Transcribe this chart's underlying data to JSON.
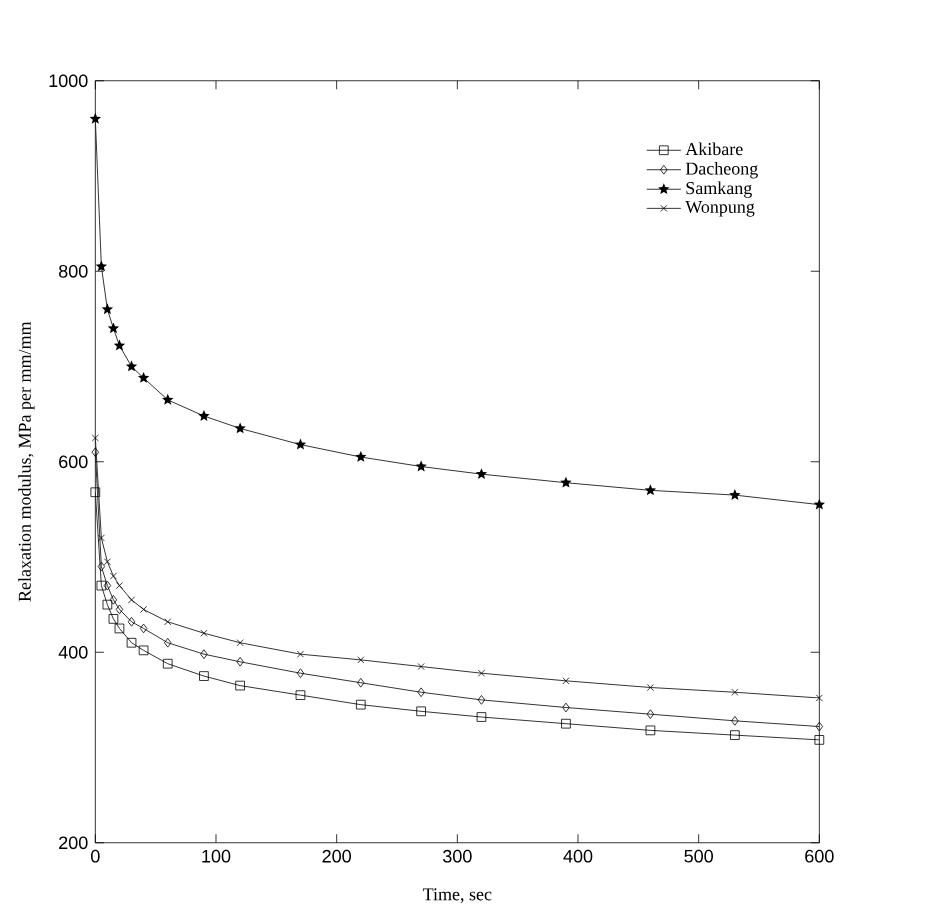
{
  "chart_data": {
    "type": "line",
    "xlabel": "Time, sec",
    "ylabel": "Relaxation modulus, MPa per mm/mm",
    "x": [
      0,
      5,
      10,
      15,
      20,
      30,
      40,
      60,
      90,
      120,
      170,
      220,
      270,
      320,
      390,
      460,
      530,
      600
    ],
    "series": [
      {
        "name": "Akibare",
        "color": "#000000",
        "marker": "square",
        "values": [
          568,
          470,
          450,
          435,
          425,
          410,
          402,
          388,
          375,
          365,
          355,
          345,
          338,
          332,
          325,
          318,
          313,
          308
        ]
      },
      {
        "name": "Dacheong",
        "color": "#000000",
        "marker": "diamond",
        "values": [
          610,
          490,
          470,
          455,
          445,
          432,
          425,
          410,
          398,
          390,
          378,
          368,
          358,
          350,
          342,
          335,
          328,
          322
        ]
      },
      {
        "name": "Samkang",
        "color": "#000000",
        "marker": "star",
        "values": [
          960,
          805,
          760,
          740,
          722,
          700,
          688,
          665,
          648,
          635,
          618,
          605,
          595,
          587,
          578,
          570,
          565,
          555
        ]
      },
      {
        "name": "Wonpung",
        "color": "#000000",
        "marker": "cross",
        "values": [
          625,
          520,
          495,
          480,
          470,
          455,
          445,
          432,
          420,
          410,
          398,
          392,
          385,
          378,
          370,
          363,
          358,
          352
        ]
      }
    ],
    "xlim": [
      0,
      600
    ],
    "ylim": [
      200,
      1000
    ],
    "xticks": [
      0,
      100,
      200,
      300,
      400,
      500,
      600
    ],
    "yticks": [
      200,
      400,
      600,
      800,
      1000
    ],
    "grid": false,
    "legend": "top right",
    "line_style": "solid"
  }
}
